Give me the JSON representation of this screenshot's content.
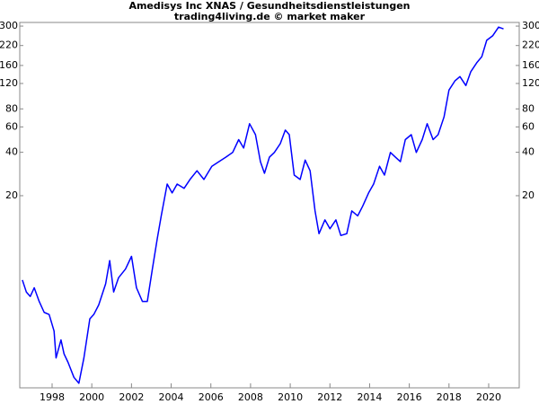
{
  "chart_data": {
    "type": "line",
    "title": "Amedisys Inc XNAS / Gesundheitsdienstleistungen",
    "subtitle": "trading4living.de © market maker",
    "color": "#0000ff",
    "log_scale": true,
    "x": [
      1996.5,
      1996.7,
      1996.9,
      1997.1,
      1997.35,
      1997.6,
      1997.85,
      1998.1,
      1998.2,
      1998.45,
      1998.6,
      1998.8,
      1999.1,
      1999.35,
      1999.6,
      1999.9,
      2000.1,
      2000.35,
      2000.7,
      2000.9,
      2001.1,
      2001.35,
      2001.7,
      2002.0,
      2002.25,
      2002.55,
      2002.8,
      2003.05,
      2003.3,
      2003.5,
      2003.8,
      2004.05,
      2004.3,
      2004.65,
      2004.95,
      2005.3,
      2005.65,
      2006.05,
      2006.4,
      2006.75,
      2007.1,
      2007.4,
      2007.65,
      2007.95,
      2008.25,
      2008.5,
      2008.7,
      2008.95,
      2009.2,
      2009.5,
      2009.75,
      2009.95,
      2010.2,
      2010.5,
      2010.75,
      2011.0,
      2011.25,
      2011.45,
      2011.75,
      2012.0,
      2012.3,
      2012.55,
      2012.85,
      2013.1,
      2013.4,
      2013.65,
      2013.95,
      2014.2,
      2014.5,
      2014.75,
      2015.05,
      2015.3,
      2015.55,
      2015.8,
      2016.1,
      2016.35,
      2016.65,
      2016.9,
      2017.2,
      2017.45,
      2017.75,
      2018.0,
      2018.3,
      2018.55,
      2018.85,
      2019.1,
      2019.4,
      2019.65,
      2019.9,
      2020.2,
      2020.5,
      2020.75
    ],
    "values": [
      5.2,
      4.3,
      4.0,
      4.6,
      3.7,
      3.1,
      3.0,
      2.3,
      1.5,
      2.0,
      1.6,
      1.4,
      1.1,
      1.0,
      1.5,
      2.8,
      3.0,
      3.5,
      4.9,
      7.1,
      4.3,
      5.4,
      6.2,
      7.6,
      4.6,
      3.7,
      3.7,
      6.2,
      10.1,
      14.5,
      24.1,
      20.9,
      24.1,
      22.5,
      25.9,
      29.8,
      25.9,
      32.0,
      34.4,
      37.0,
      39.9,
      49.0,
      42.8,
      63.1,
      53,
      34.4,
      28.6,
      37.0,
      39.9,
      45.9,
      57,
      53,
      27.8,
      25.9,
      35.3,
      29.8,
      15.7,
      10.9,
      13.6,
      11.8,
      13.6,
      10.6,
      10.9,
      15.7,
      14.5,
      16.9,
      20.9,
      24.1,
      32.0,
      27.8,
      39.9,
      37.0,
      34.4,
      49.0,
      53,
      39.9,
      49.0,
      63.1,
      49.0,
      53,
      70.4,
      108,
      125,
      134,
      116,
      145,
      167,
      184,
      239,
      257,
      295,
      287
    ],
    "xlim": [
      1996.37,
      2021.54
    ],
    "xticks": [
      1998,
      2000,
      2002,
      2004,
      2006,
      2008,
      2010,
      2012,
      2014,
      2016,
      2018,
      2020
    ],
    "ylim": [
      0.93,
      318
    ],
    "yticks": [
      20,
      40,
      60,
      80,
      120,
      160,
      220,
      300
    ]
  }
}
